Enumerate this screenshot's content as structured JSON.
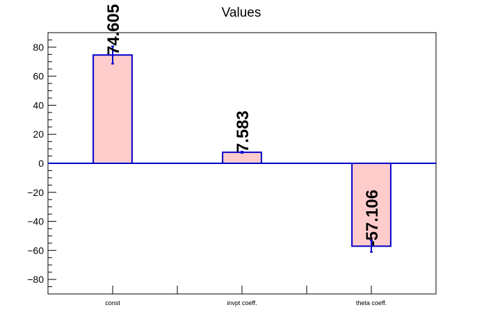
{
  "chart_data": {
    "type": "bar",
    "title": "Values",
    "categories": [
      "const",
      "invpt coeff.",
      "theta coeff."
    ],
    "values": [
      74.605,
      7.583,
      -57.106
    ],
    "value_labels": [
      "74.605",
      "7.583",
      "-57.106"
    ],
    "errors": [
      6.0,
      0.5,
      4.0
    ],
    "ylim": [
      -90,
      90
    ],
    "yticks": [
      -80,
      -60,
      -40,
      -20,
      0,
      20,
      40,
      60,
      80
    ],
    "ytick_labels": [
      "−80",
      "−60",
      "−40",
      "−20",
      "0",
      "20",
      "40",
      "60",
      "80"
    ],
    "grid": false,
    "legend": "none",
    "colors": {
      "bar_fill": "#ffcccc",
      "bar_edge": "#0000cc",
      "zero_line": "#0000cc",
      "text": "#000000"
    }
  }
}
